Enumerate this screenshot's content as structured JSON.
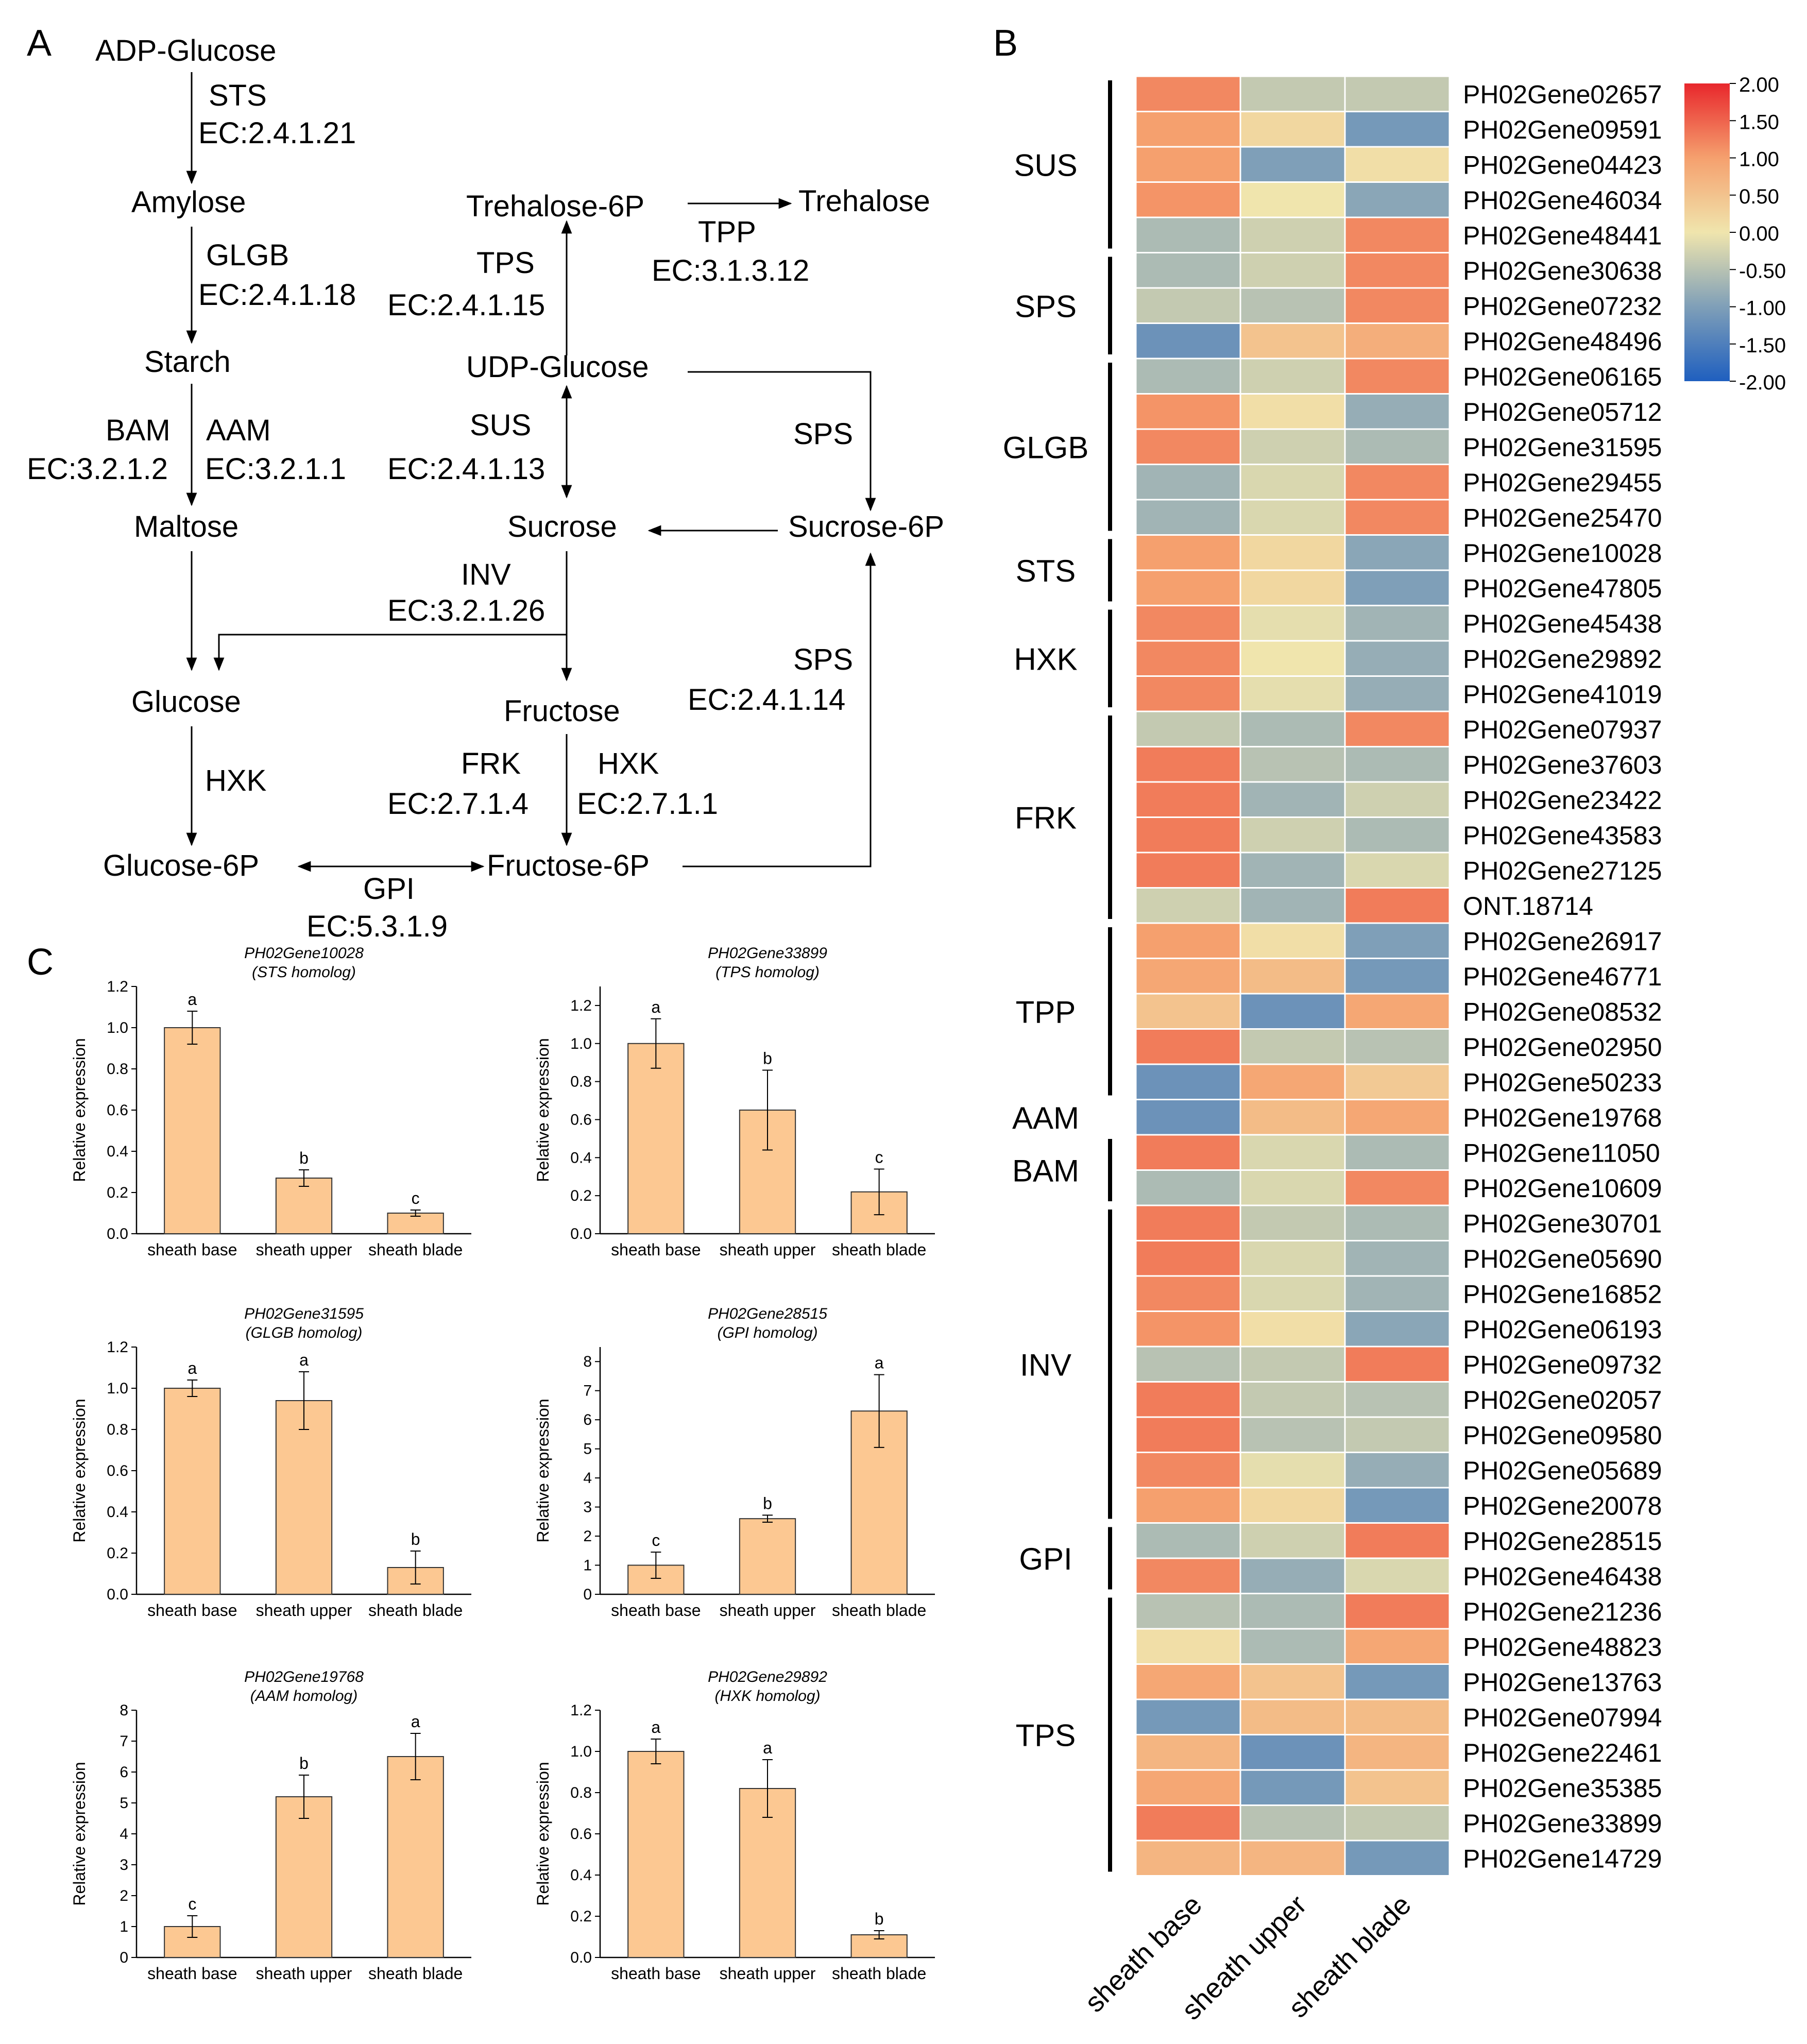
{
  "panels": {
    "a": "A",
    "b": "B",
    "c": "C"
  },
  "pathway": {
    "compounds": {
      "adp_glucose": "ADP-Glucose",
      "amylose": "Amylose",
      "starch": "Starch",
      "maltose": "Maltose",
      "glucose": "Glucose",
      "glucose6p": "Glucose-6P",
      "trehalose6p": "Trehalose-6P",
      "trehalose": "Trehalose",
      "udp_glucose": "UDP-Glucose",
      "sucrose": "Sucrose",
      "sucrose6p": "Sucrose-6P",
      "fructose": "Fructose",
      "fructose6p": "Fructose-6P"
    },
    "enzymes": {
      "sts": "STS",
      "sts_ec": "EC:2.4.1.21",
      "glgb": "GLGB",
      "glgb_ec": "EC:2.4.1.18",
      "bam": "BAM",
      "bam_ec": "EC:3.2.1.2",
      "aam": "AAM",
      "aam_ec": "EC:3.2.1.1",
      "hxk1": "HXK",
      "tps": "TPS",
      "tps_ec": "EC:2.4.1.15",
      "tpp": "TPP",
      "tpp_ec": "EC:3.1.3.12",
      "sus": "SUS",
      "sus_ec": "EC:2.4.1.13",
      "sps1": "SPS",
      "inv": "INV",
      "inv_ec": "EC:3.2.1.26",
      "sps2": "SPS",
      "sps2_ec": "EC:2.4.1.14",
      "frk": "FRK",
      "frk_ec": "EC:2.7.1.4",
      "hxk2": "HXK",
      "hxk2_ec": "EC:2.7.1.1",
      "gpi": "GPI",
      "gpi_ec": "EC:5.3.1.9"
    }
  },
  "heatmap": {
    "columns": [
      "sheath base",
      "sheath upper",
      "sheath blade"
    ],
    "legend": {
      "ticks": [
        "2.00",
        "1.50",
        "1.00",
        "0.50",
        "0.00",
        "-0.50",
        "-1.00",
        "-1.50",
        "-2.00"
      ],
      "min": -2,
      "max": 2
    },
    "genes": [
      "PH02Gene02657",
      "PH02Gene09591",
      "PH02Gene04423",
      "PH02Gene46034",
      "PH02Gene48441",
      "PH02Gene30638",
      "PH02Gene07232",
      "PH02Gene48496",
      "PH02Gene06165",
      "PH02Gene05712",
      "PH02Gene31595",
      "PH02Gene29455",
      "PH02Gene25470",
      "PH02Gene10028",
      "PH02Gene47805",
      "PH02Gene45438",
      "PH02Gene29892",
      "PH02Gene41019",
      "PH02Gene07937",
      "PH02Gene37603",
      "PH02Gene23422",
      "PH02Gene43583",
      "PH02Gene27125",
      "ONT.18714",
      "PH02Gene26917",
      "PH02Gene46771",
      "PH02Gene08532",
      "PH02Gene02950",
      "PH02Gene50233",
      "PH02Gene19768",
      "PH02Gene11050",
      "PH02Gene10609",
      "PH02Gene30701",
      "PH02Gene05690",
      "PH02Gene16852",
      "PH02Gene06193",
      "PH02Gene09732",
      "PH02Gene02057",
      "PH02Gene09580",
      "PH02Gene05689",
      "PH02Gene20078",
      "PH02Gene28515",
      "PH02Gene46438",
      "PH02Gene21236",
      "PH02Gene48823",
      "PH02Gene13763",
      "PH02Gene07994",
      "PH02Gene22461",
      "PH02Gene35385",
      "PH02Gene33899",
      "PH02Gene14729"
    ],
    "values": [
      [
        1.2,
        -0.4,
        -0.4
      ],
      [
        1.0,
        0.2,
        -1.1
      ],
      [
        1.0,
        -1.0,
        0.1
      ],
      [
        1.1,
        0.0,
        -0.9
      ],
      [
        -0.6,
        -0.3,
        1.2
      ],
      [
        -0.6,
        -0.3,
        1.2
      ],
      [
        -0.4,
        -0.5,
        1.2
      ],
      [
        -1.2,
        0.5,
        0.8
      ],
      [
        -0.6,
        -0.3,
        1.2
      ],
      [
        1.1,
        0.1,
        -0.8
      ],
      [
        1.2,
        -0.3,
        -0.6
      ],
      [
        -0.7,
        -0.2,
        1.2
      ],
      [
        -0.7,
        -0.2,
        1.2
      ],
      [
        1.0,
        0.2,
        -0.9
      ],
      [
        1.0,
        0.2,
        -1.0
      ],
      [
        1.2,
        -0.1,
        -0.7
      ],
      [
        1.2,
        0.0,
        -0.8
      ],
      [
        1.2,
        -0.1,
        -0.8
      ],
      [
        -0.4,
        -0.6,
        1.2
      ],
      [
        1.3,
        -0.5,
        -0.6
      ],
      [
        1.3,
        -0.7,
        -0.3
      ],
      [
        1.3,
        -0.3,
        -0.6
      ],
      [
        1.3,
        -0.7,
        -0.2
      ],
      [
        -0.3,
        -0.7,
        1.3
      ],
      [
        1.0,
        0.1,
        -1.0
      ],
      [
        0.9,
        0.6,
        -1.1
      ],
      [
        0.5,
        -1.2,
        0.9
      ],
      [
        1.3,
        -0.4,
        -0.5
      ],
      [
        -1.2,
        0.9,
        0.4
      ],
      [
        -1.2,
        0.6,
        0.9
      ],
      [
        1.3,
        -0.2,
        -0.6
      ],
      [
        -0.6,
        -0.2,
        1.2
      ],
      [
        1.3,
        -0.4,
        -0.6
      ],
      [
        1.3,
        -0.2,
        -0.7
      ],
      [
        1.2,
        -0.2,
        -0.7
      ],
      [
        1.1,
        0.1,
        -0.9
      ],
      [
        -0.5,
        -0.4,
        1.3
      ],
      [
        1.3,
        -0.4,
        -0.5
      ],
      [
        1.3,
        -0.5,
        -0.4
      ],
      [
        1.2,
        -0.1,
        -0.8
      ],
      [
        1.0,
        0.2,
        -1.1
      ],
      [
        -0.6,
        -0.3,
        1.3
      ],
      [
        1.2,
        -0.8,
        -0.2
      ],
      [
        -0.5,
        -0.6,
        1.3
      ],
      [
        0.1,
        -0.6,
        0.9
      ],
      [
        0.9,
        0.5,
        -1.1
      ],
      [
        -1.1,
        0.6,
        0.6
      ],
      [
        0.7,
        -1.2,
        0.7
      ],
      [
        0.9,
        -1.1,
        0.5
      ],
      [
        1.3,
        -0.5,
        -0.4
      ],
      [
        0.7,
        0.7,
        -1.1
      ]
    ],
    "groups": [
      {
        "name": "SUS",
        "start": 0,
        "end": 4
      },
      {
        "name": "SPS",
        "start": 5,
        "end": 7
      },
      {
        "name": "GLGB",
        "start": 8,
        "end": 12
      },
      {
        "name": "STS",
        "start": 13,
        "end": 14
      },
      {
        "name": "HXK",
        "start": 15,
        "end": 17
      },
      {
        "name": "FRK",
        "start": 18,
        "end": 23
      },
      {
        "name": "TPP",
        "start": 24,
        "end": 28
      },
      {
        "name": "AAM",
        "start": 29,
        "end": 29
      },
      {
        "name": "BAM",
        "start": 30,
        "end": 31
      },
      {
        "name": "INV",
        "start": 32,
        "end": 40
      },
      {
        "name": "GPI",
        "start": 41,
        "end": 42
      },
      {
        "name": "TPS",
        "start": 43,
        "end": 50
      }
    ]
  },
  "chart_data": [
    {
      "type": "bar",
      "gene": "PH02Gene10028",
      "subtitle": "(STS homolog)",
      "ylabel": "Relative expression",
      "categories": [
        "sheath base",
        "sheath upper",
        "sheath blade"
      ],
      "values": [
        1.0,
        0.27,
        0.1
      ],
      "errors": [
        0.08,
        0.04,
        0.015
      ],
      "letters": [
        "a",
        "b",
        "c"
      ],
      "ylim": [
        0,
        1.2
      ],
      "yticks": [
        "0.0",
        "0.2",
        "0.4",
        "0.6",
        "0.8",
        "1.0",
        "1.2"
      ]
    },
    {
      "type": "bar",
      "gene": "PH02Gene33899",
      "subtitle": "(TPS homolog)",
      "ylabel": "Relative expression",
      "categories": [
        "sheath base",
        "sheath upper",
        "sheath blade"
      ],
      "values": [
        1.0,
        0.65,
        0.22
      ],
      "errors": [
        0.13,
        0.21,
        0.12
      ],
      "letters": [
        "a",
        "b",
        "c"
      ],
      "ylim": [
        0,
        1.3
      ],
      "yticks": [
        "0.0",
        "0.2",
        "0.4",
        "0.6",
        "0.8",
        "1.0",
        "1.2"
      ]
    },
    {
      "type": "bar",
      "gene": "PH02Gene31595",
      "subtitle": "(GLGB homolog)",
      "ylabel": "Relative expression",
      "categories": [
        "sheath base",
        "sheath upper",
        "sheath blade"
      ],
      "values": [
        1.0,
        0.94,
        0.13
      ],
      "errors": [
        0.04,
        0.14,
        0.08
      ],
      "letters": [
        "a",
        "a",
        "b"
      ],
      "ylim": [
        0,
        1.2
      ],
      "yticks": [
        "0.0",
        "0.2",
        "0.4",
        "0.6",
        "0.8",
        "1.0",
        "1.2"
      ]
    },
    {
      "type": "bar",
      "gene": "PH02Gene28515",
      "subtitle": "(GPI homolog)",
      "ylabel": "Relative expression",
      "categories": [
        "sheath base",
        "sheath upper",
        "sheath blade"
      ],
      "values": [
        1.0,
        2.6,
        6.3
      ],
      "errors": [
        0.45,
        0.12,
        1.25
      ],
      "letters": [
        "c",
        "b",
        "a"
      ],
      "ylim": [
        0,
        8.5
      ],
      "yticks": [
        "0",
        "1",
        "2",
        "3",
        "4",
        "5",
        "6",
        "7",
        "8"
      ]
    },
    {
      "type": "bar",
      "gene": "PH02Gene19768",
      "subtitle": "(AAM homolog)",
      "ylabel": "Relative expression",
      "categories": [
        "sheath base",
        "sheath upper",
        "sheath blade"
      ],
      "values": [
        1.0,
        5.2,
        6.5
      ],
      "errors": [
        0.35,
        0.7,
        0.75
      ],
      "letters": [
        "c",
        "b",
        "a"
      ],
      "ylim": [
        0,
        8
      ],
      "yticks": [
        "0",
        "1",
        "2",
        "3",
        "4",
        "5",
        "6",
        "7",
        "8"
      ]
    },
    {
      "type": "bar",
      "gene": "PH02Gene29892",
      "subtitle": "(HXK homolog)",
      "ylabel": "Relative expression",
      "categories": [
        "sheath base",
        "sheath upper",
        "sheath blade"
      ],
      "values": [
        1.0,
        0.82,
        0.11
      ],
      "errors": [
        0.06,
        0.14,
        0.02
      ],
      "letters": [
        "a",
        "a",
        "b"
      ],
      "ylim": [
        0,
        1.2
      ],
      "yticks": [
        "0.0",
        "0.2",
        "0.4",
        "0.6",
        "0.8",
        "1.0",
        "1.2"
      ]
    }
  ]
}
